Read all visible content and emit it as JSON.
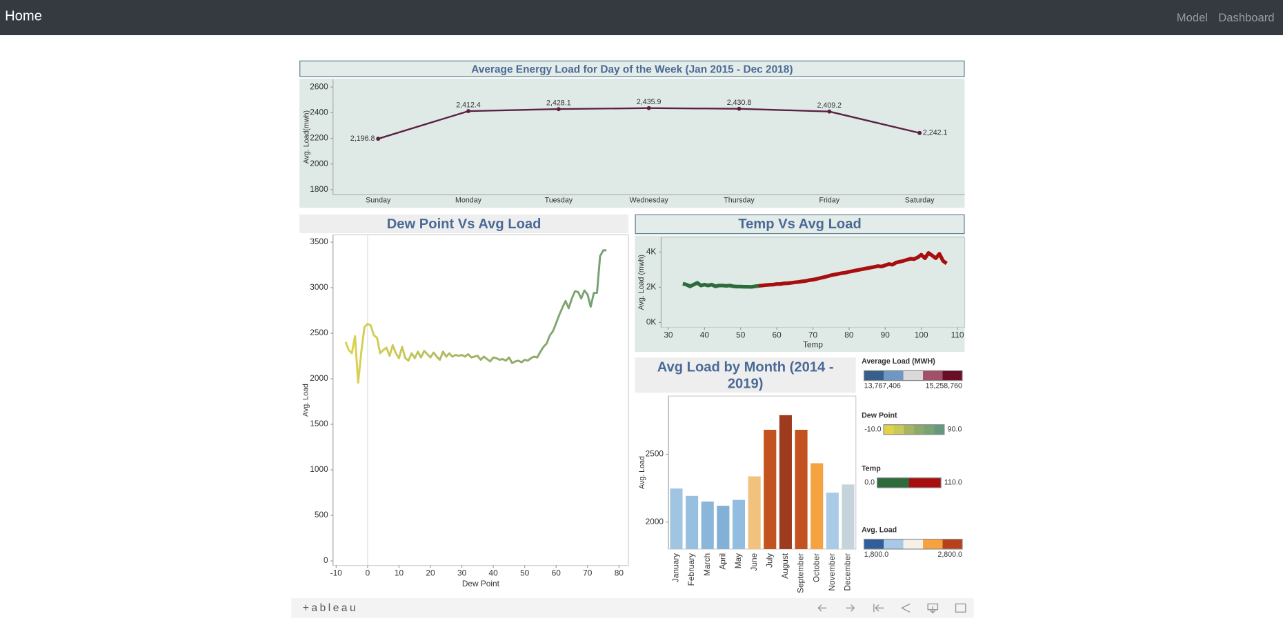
{
  "navbar": {
    "brand": "Home",
    "links": [
      "Model",
      "Dashboard"
    ]
  },
  "chart_data": [
    {
      "type": "line",
      "title": "Average Energy Load for Day of the Week (Jan 2015 - Dec 2018)",
      "y_label": "Avg. Load(mwh)",
      "categories": [
        "Sunday",
        "Monday",
        "Tuesday",
        "Wednesday",
        "Thursday",
        "Friday",
        "Saturday"
      ],
      "values": [
        2196.8,
        2412.4,
        2428.1,
        2435.9,
        2430.8,
        2409.2,
        2242.1
      ],
      "value_labels": [
        "2,196.8",
        "2,412.4",
        "2,428.1",
        "2,435.9",
        "2,430.8",
        "2,409.2",
        "2,242.1"
      ],
      "color": "#5a2042",
      "ylim": [
        1760,
        2660
      ],
      "yticks": [
        1800,
        2000,
        2200,
        2400,
        2600
      ]
    },
    {
      "type": "line",
      "title": "Dew Point Vs Avg Load",
      "x_label": "Dew Point",
      "y_label": "Avg. Load",
      "x": [
        -7,
        -6,
        -5,
        -4,
        -3,
        -2,
        -1,
        0,
        1,
        2,
        3,
        4,
        5,
        6,
        7,
        8,
        9,
        10,
        11,
        12,
        13,
        14,
        15,
        16,
        17,
        18,
        19,
        20,
        21,
        22,
        23,
        24,
        25,
        26,
        27,
        28,
        29,
        30,
        31,
        32,
        33,
        34,
        35,
        36,
        37,
        38,
        39,
        40,
        41,
        42,
        43,
        44,
        45,
        46,
        47,
        48,
        49,
        50,
        51,
        52,
        53,
        54,
        55,
        56,
        57,
        58,
        59,
        60,
        61,
        62,
        63,
        64,
        65,
        66,
        67,
        68,
        69,
        70,
        71,
        72,
        73,
        74,
        75,
        76
      ],
      "values": [
        2405,
        2315,
        2280,
        2468,
        1956,
        2297,
        2567,
        2602,
        2585,
        2477,
        2450,
        2280,
        2315,
        2342,
        2252,
        2369,
        2280,
        2226,
        2351,
        2226,
        2199,
        2280,
        2226,
        2297,
        2234,
        2306,
        2270,
        2234,
        2288,
        2243,
        2208,
        2297,
        2243,
        2279,
        2243,
        2261,
        2252,
        2261,
        2243,
        2270,
        2234,
        2243,
        2252,
        2208,
        2243,
        2217,
        2190,
        2234,
        2226,
        2208,
        2217,
        2199,
        2234,
        2172,
        2190,
        2199,
        2181,
        2208,
        2199,
        2226,
        2243,
        2234,
        2297,
        2351,
        2387,
        2477,
        2522,
        2611,
        2701,
        2782,
        2854,
        2774,
        2881,
        2961,
        2952,
        2881,
        2970,
        2925,
        2791,
        2943,
        2943,
        3347,
        3410,
        3410
      ],
      "xlim": [
        -11,
        83
      ],
      "xticks": [
        -10,
        0,
        10,
        20,
        30,
        40,
        50,
        60,
        70,
        80
      ],
      "ylim": [
        -50,
        3580
      ],
      "yticks": [
        0,
        500,
        1000,
        1500,
        2000,
        2500,
        3000,
        3500
      ]
    },
    {
      "type": "line",
      "title": "Temp Vs Avg Load",
      "x_label": "Temp",
      "y_label": "Avg. Load (mwh)",
      "x": [
        34,
        35,
        36,
        37,
        38,
        39,
        40,
        41,
        42,
        43,
        44,
        45,
        46,
        47,
        48,
        49,
        50,
        51,
        52,
        53,
        54,
        55,
        56,
        57,
        58,
        59,
        60,
        61,
        62,
        63,
        64,
        65,
        66,
        67,
        68,
        69,
        70,
        71,
        72,
        73,
        74,
        75,
        76,
        77,
        78,
        79,
        80,
        81,
        82,
        83,
        84,
        85,
        86,
        87,
        88,
        89,
        90,
        91,
        92,
        93,
        94,
        95,
        96,
        97,
        98,
        99,
        100,
        101,
        102,
        103,
        104,
        105,
        106,
        107
      ],
      "values": [
        2200,
        2150,
        2050,
        2150,
        2250,
        2100,
        2150,
        2100,
        2150,
        2050,
        2100,
        2100,
        2080,
        2100,
        2050,
        2040,
        2040,
        2030,
        2030,
        2020,
        2050,
        2080,
        2100,
        2120,
        2140,
        2150,
        2180,
        2180,
        2220,
        2230,
        2250,
        2280,
        2300,
        2330,
        2360,
        2400,
        2430,
        2470,
        2520,
        2570,
        2620,
        2680,
        2720,
        2760,
        2800,
        2830,
        2880,
        2920,
        2960,
        3000,
        3040,
        3080,
        3120,
        3160,
        3200,
        3180,
        3250,
        3320,
        3280,
        3400,
        3450,
        3500,
        3560,
        3620,
        3600,
        3700,
        3850,
        3650,
        3950,
        3800,
        3650,
        3900,
        3500,
        3350
      ],
      "xlim": [
        28,
        112
      ],
      "xticks": [
        30,
        40,
        50,
        60,
        70,
        80,
        90,
        100,
        110
      ],
      "ylim": [
        -280,
        4840
      ],
      "yticks": [
        {
          "value": 0,
          "label": "0K"
        },
        {
          "value": 2000,
          "label": "2K"
        },
        {
          "value": 4000,
          "label": "4K"
        }
      ]
    },
    {
      "type": "bar",
      "title": "Avg Load by Month (2014 - 2019)",
      "y_label": "Avg. Load",
      "categories": [
        "January",
        "February",
        "March",
        "April",
        "May",
        "June",
        "July",
        "August",
        "September",
        "October",
        "November",
        "December"
      ],
      "values": [
        2247,
        2193,
        2151,
        2120,
        2163,
        2337,
        2681,
        2789,
        2681,
        2434,
        2217,
        2277
      ],
      "colors": [
        "#9fc5e3",
        "#97c0e0",
        "#8ab6da",
        "#82b0d6",
        "#93bde0",
        "#f1c27d",
        "#c2521f",
        "#9e3a1e",
        "#c2521f",
        "#f4a340",
        "#a9cbe6",
        "#c4d4da"
      ],
      "ylim": [
        1800,
        2930
      ],
      "yticks": [
        2000,
        2500
      ]
    }
  ],
  "legends": [
    {
      "title": "Average Load (MWH)",
      "min": {
        "value": 13767406,
        "label": "13,767,406"
      },
      "max": {
        "value": 15258760,
        "label": "15,258,760"
      },
      "colors": [
        "#375f8c",
        "#6e97c4",
        "#d9d9d9",
        "#a2506a",
        "#6b0d24"
      ]
    },
    {
      "title": "Dew Point",
      "min": {
        "value": -10,
        "label": "-10.0"
      },
      "max": {
        "value": 90,
        "label": "90.0"
      },
      "colors": [
        "#e0d34a",
        "#c9c95a",
        "#a7b562",
        "#8caa6a",
        "#79a374",
        "#64997f"
      ]
    },
    {
      "title": "Temp",
      "min": {
        "value": 0,
        "label": "0.0"
      },
      "max": {
        "value": 110,
        "label": "110.0"
      },
      "colors": [
        "#2e6b3c",
        "#a80e0e"
      ]
    },
    {
      "title": "Avg. Load",
      "min": {
        "value": 1800,
        "label": "1,800.0"
      },
      "max": {
        "value": 2800,
        "label": "2,800.0"
      },
      "colors": [
        "#2f5e9a",
        "#a7c8e6",
        "#f5f1e8",
        "#f4a340",
        "#b8401b"
      ]
    }
  ],
  "toolbar": {
    "logo": "+ableau"
  }
}
